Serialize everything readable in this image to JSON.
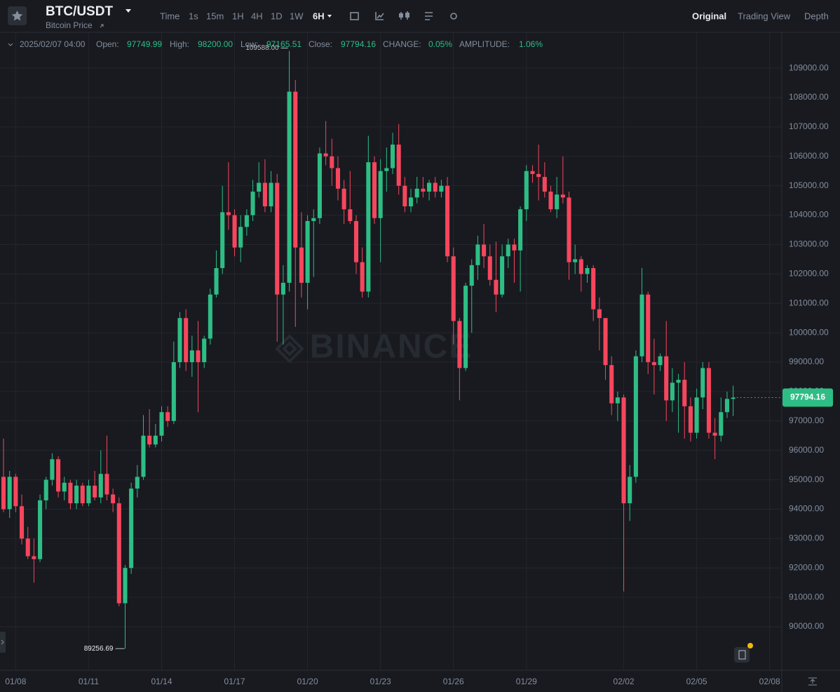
{
  "header": {
    "symbol": "BTC/USDT",
    "subtitle": "Bitcoin Price",
    "intervals": [
      "Time",
      "1s",
      "15m",
      "1H",
      "4H",
      "1D",
      "1W",
      "6H"
    ],
    "views": [
      "Original",
      "Trading View",
      "Depth"
    ]
  },
  "chart_data": {
    "type": "candlestick",
    "info": {
      "date": "2025/02/07 04:00",
      "open": "Open:",
      "high": "High:",
      "high_value": "98200.00",
      "low": "Low:",
      "close": "Close:",
      "change_label": "CHANGE:",
      "change": "0.05%",
      "amplitude_label": "AMPLITUDE:",
      "amplitude": "1.06%"
    },
    "high_label": "109588.00",
    "low_label": "89256.69",
    "watermark": "BINANCE",
    "up_color": "#2ebd85",
    "down_color": "#f6465d",
    "grid": true,
    "xlim": [
      -0.58,
      128
    ],
    "ylim": [
      88760,
      110220
    ],
    "yticks": [
      {
        "value": 90000,
        "label": "90000.00"
      },
      {
        "value": 91000,
        "label": "91000.00"
      },
      {
        "value": 92000,
        "label": "92000.00"
      },
      {
        "value": 93000,
        "label": "93000.00"
      },
      {
        "value": 94000,
        "label": "94000.00"
      },
      {
        "value": 95000,
        "label": "95000.00"
      },
      {
        "value": 96000,
        "label": "96000.00"
      },
      {
        "value": 97000,
        "label": "97000.00"
      },
      {
        "value": 98000,
        "label": "98000.00"
      },
      {
        "value": 99000,
        "label": "99000.00"
      },
      {
        "value": 100000,
        "label": "100000.00"
      },
      {
        "value": 101000,
        "label": "101000.00"
      },
      {
        "value": 102000,
        "label": "102000.00"
      },
      {
        "value": 103000,
        "label": "103000.00"
      },
      {
        "value": 104000,
        "label": "104000.00"
      },
      {
        "value": 105000,
        "label": "105000.00"
      },
      {
        "value": 106000,
        "label": "106000.00"
      },
      {
        "value": 107000,
        "label": "107000.00"
      },
      {
        "value": 108000,
        "label": "108000.00"
      },
      {
        "value": 109000,
        "label": "109000.00"
      }
    ],
    "xticks": [
      {
        "value": 2,
        "label": "01/08"
      },
      {
        "value": 14,
        "label": "01/11"
      },
      {
        "value": 26,
        "label": "01/14"
      },
      {
        "value": 38,
        "label": "01/17"
      },
      {
        "value": 50,
        "label": "01/20"
      },
      {
        "value": 62,
        "label": "01/23"
      },
      {
        "value": 74,
        "label": "01/26"
      },
      {
        "value": 86,
        "label": "01/29"
      },
      {
        "value": 102,
        "label": "02/02"
      },
      {
        "value": 114,
        "label": "02/05"
      },
      {
        "value": 126,
        "label": "02/08"
      }
    ],
    "candles": [
      [
        95100,
        96400,
        93900,
        94000
      ],
      [
        94000,
        95300,
        93700,
        95100
      ],
      [
        95100,
        95200,
        93900,
        94100
      ],
      [
        94100,
        94500,
        92800,
        93000
      ],
      [
        93000,
        93400,
        92300,
        92400
      ],
      [
        92400,
        93000,
        91500,
        92300
      ],
      [
        92300,
        94500,
        92200,
        94300
      ],
      [
        94300,
        95100,
        94000,
        95000
      ],
      [
        95000,
        95900,
        94800,
        95700
      ],
      [
        95700,
        95800,
        94400,
        94600
      ],
      [
        94600,
        95100,
        94300,
        94900
      ],
      [
        94900,
        95000,
        94000,
        94200
      ],
      [
        94200,
        95000,
        94000,
        94800
      ],
      [
        94800,
        94900,
        94100,
        94200
      ],
      [
        94200,
        95000,
        94100,
        94800
      ],
      [
        94800,
        95300,
        94300,
        94400
      ],
      [
        94400,
        96000,
        94200,
        95200
      ],
      [
        95200,
        96500,
        94300,
        94500
      ],
      [
        94500,
        94700,
        93900,
        94200
      ],
      [
        94200,
        94400,
        90700,
        90800
      ],
      [
        90800,
        92100,
        89256.69,
        92000
      ],
      [
        92000,
        94900,
        91800,
        94700
      ],
      [
        94700,
        95500,
        94400,
        95100
      ],
      [
        95100,
        97200,
        95000,
        96500
      ],
      [
        96500,
        97400,
        96100,
        96200
      ],
      [
        96200,
        96900,
        96100,
        96500
      ],
      [
        96500,
        97500,
        96300,
        97300
      ],
      [
        97300,
        97500,
        96800,
        97000
      ],
      [
        97000,
        99700,
        96900,
        99000
      ],
      [
        99000,
        100700,
        98800,
        100500
      ],
      [
        100500,
        100800,
        98700,
        99000
      ],
      [
        99000,
        99900,
        98500,
        99400
      ],
      [
        99400,
        100400,
        97300,
        99000
      ],
      [
        99000,
        99900,
        98800,
        99800
      ],
      [
        99800,
        101500,
        99600,
        101300
      ],
      [
        101300,
        102800,
        101200,
        102200
      ],
      [
        102200,
        105000,
        102000,
        104100
      ],
      [
        104100,
        105800,
        103500,
        104000
      ],
      [
        104000,
        104200,
        102600,
        102900
      ],
      [
        102900,
        104000,
        102400,
        103600
      ],
      [
        103600,
        104200,
        103300,
        104000
      ],
      [
        104000,
        105200,
        103800,
        104800
      ],
      [
        104800,
        105800,
        104600,
        105100
      ],
      [
        105100,
        105900,
        104100,
        104300
      ],
      [
        104300,
        105500,
        104100,
        105100
      ],
      [
        105100,
        105400,
        99700,
        101300
      ],
      [
        101300,
        102300,
        99600,
        101700
      ],
      [
        101700,
        109588,
        101400,
        108200
      ],
      [
        108200,
        108600,
        100200,
        102900
      ],
      [
        102900,
        104100,
        101200,
        101700
      ],
      [
        101700,
        104000,
        100800,
        103800
      ],
      [
        103800,
        104200,
        101900,
        103900
      ],
      [
        103900,
        106300,
        103700,
        106100
      ],
      [
        106100,
        107200,
        105700,
        106000
      ],
      [
        106000,
        106600,
        105000,
        105600
      ],
      [
        105600,
        106000,
        104500,
        104900
      ],
      [
        104900,
        105200,
        103700,
        104200
      ],
      [
        104200,
        105500,
        103700,
        103800
      ],
      [
        103800,
        104000,
        102000,
        102400
      ],
      [
        102400,
        102900,
        101200,
        101400
      ],
      [
        101400,
        106700,
        101200,
        105800
      ],
      [
        105800,
        106000,
        103700,
        103900
      ],
      [
        103900,
        105900,
        102400,
        105500
      ],
      [
        105500,
        106300,
        104800,
        105600
      ],
      [
        105600,
        106800,
        105400,
        106400
      ],
      [
        106400,
        107100,
        104700,
        105000
      ],
      [
        105000,
        105300,
        104100,
        104300
      ],
      [
        104300,
        104900,
        104100,
        104600
      ],
      [
        104600,
        105300,
        104400,
        104900
      ],
      [
        104900,
        105300,
        104600,
        104800
      ],
      [
        104800,
        105200,
        104500,
        105100
      ],
      [
        105100,
        105300,
        104600,
        104800
      ],
      [
        104800,
        105200,
        104600,
        105000
      ],
      [
        105000,
        105300,
        102400,
        102600
      ],
      [
        102600,
        102900,
        99600,
        100400
      ],
      [
        100400,
        100500,
        97700,
        98800
      ],
      [
        98800,
        101700,
        98700,
        101600
      ],
      [
        101600,
        102500,
        100000,
        102300
      ],
      [
        102300,
        103300,
        101800,
        103000
      ],
      [
        103000,
        103700,
        102200,
        102600
      ],
      [
        102600,
        103000,
        101600,
        101800
      ],
      [
        101800,
        103100,
        100700,
        101300
      ],
      [
        101300,
        103000,
        101200,
        102600
      ],
      [
        102600,
        103200,
        102200,
        103000
      ],
      [
        103000,
        103200,
        101700,
        102800
      ],
      [
        102800,
        104300,
        101400,
        104200
      ],
      [
        104200,
        105700,
        103800,
        105500
      ],
      [
        105500,
        105700,
        105100,
        105400
      ],
      [
        105400,
        106400,
        104500,
        105300
      ],
      [
        105300,
        105800,
        104600,
        104800
      ],
      [
        104800,
        105000,
        104100,
        104200
      ],
      [
        104200,
        105300,
        103900,
        104700
      ],
      [
        104700,
        106000,
        104400,
        104600
      ],
      [
        104600,
        104800,
        101800,
        102400
      ],
      [
        102400,
        103000,
        102000,
        102500
      ],
      [
        102500,
        102600,
        101400,
        102000
      ],
      [
        102000,
        102300,
        101700,
        102200
      ],
      [
        102200,
        102300,
        100400,
        100800
      ],
      [
        100800,
        101200,
        99400,
        100500
      ],
      [
        100500,
        100500,
        98400,
        98900
      ],
      [
        98900,
        99200,
        97200,
        97600
      ],
      [
        97600,
        98000,
        97000,
        97800
      ],
      [
        97800,
        97900,
        91200,
        94200
      ],
      [
        94200,
        95500,
        93600,
        95100
      ],
      [
        95100,
        99400,
        94900,
        99200
      ],
      [
        99200,
        102200,
        99000,
        101300
      ],
      [
        101300,
        101400,
        98600,
        99000
      ],
      [
        99000,
        99800,
        97900,
        98900
      ],
      [
        98900,
        99300,
        98700,
        99200
      ],
      [
        99200,
        100400,
        97000,
        97700
      ],
      [
        97700,
        98800,
        97300,
        98300
      ],
      [
        98300,
        98600,
        96600,
        98400
      ],
      [
        98400,
        99000,
        96400,
        97500
      ],
      [
        97500,
        97800,
        96300,
        96600
      ],
      [
        96600,
        98100,
        96400,
        97800
      ],
      [
        97800,
        99000,
        97400,
        98800
      ],
      [
        98800,
        99000,
        96400,
        96600
      ],
      [
        96600,
        97100,
        95700,
        96500
      ],
      [
        96500,
        97800,
        96300,
        97300
      ],
      [
        97300,
        98000,
        97100,
        97749.99
      ],
      [
        97749.99,
        98200,
        97165.51,
        97794.16
      ]
    ]
  }
}
